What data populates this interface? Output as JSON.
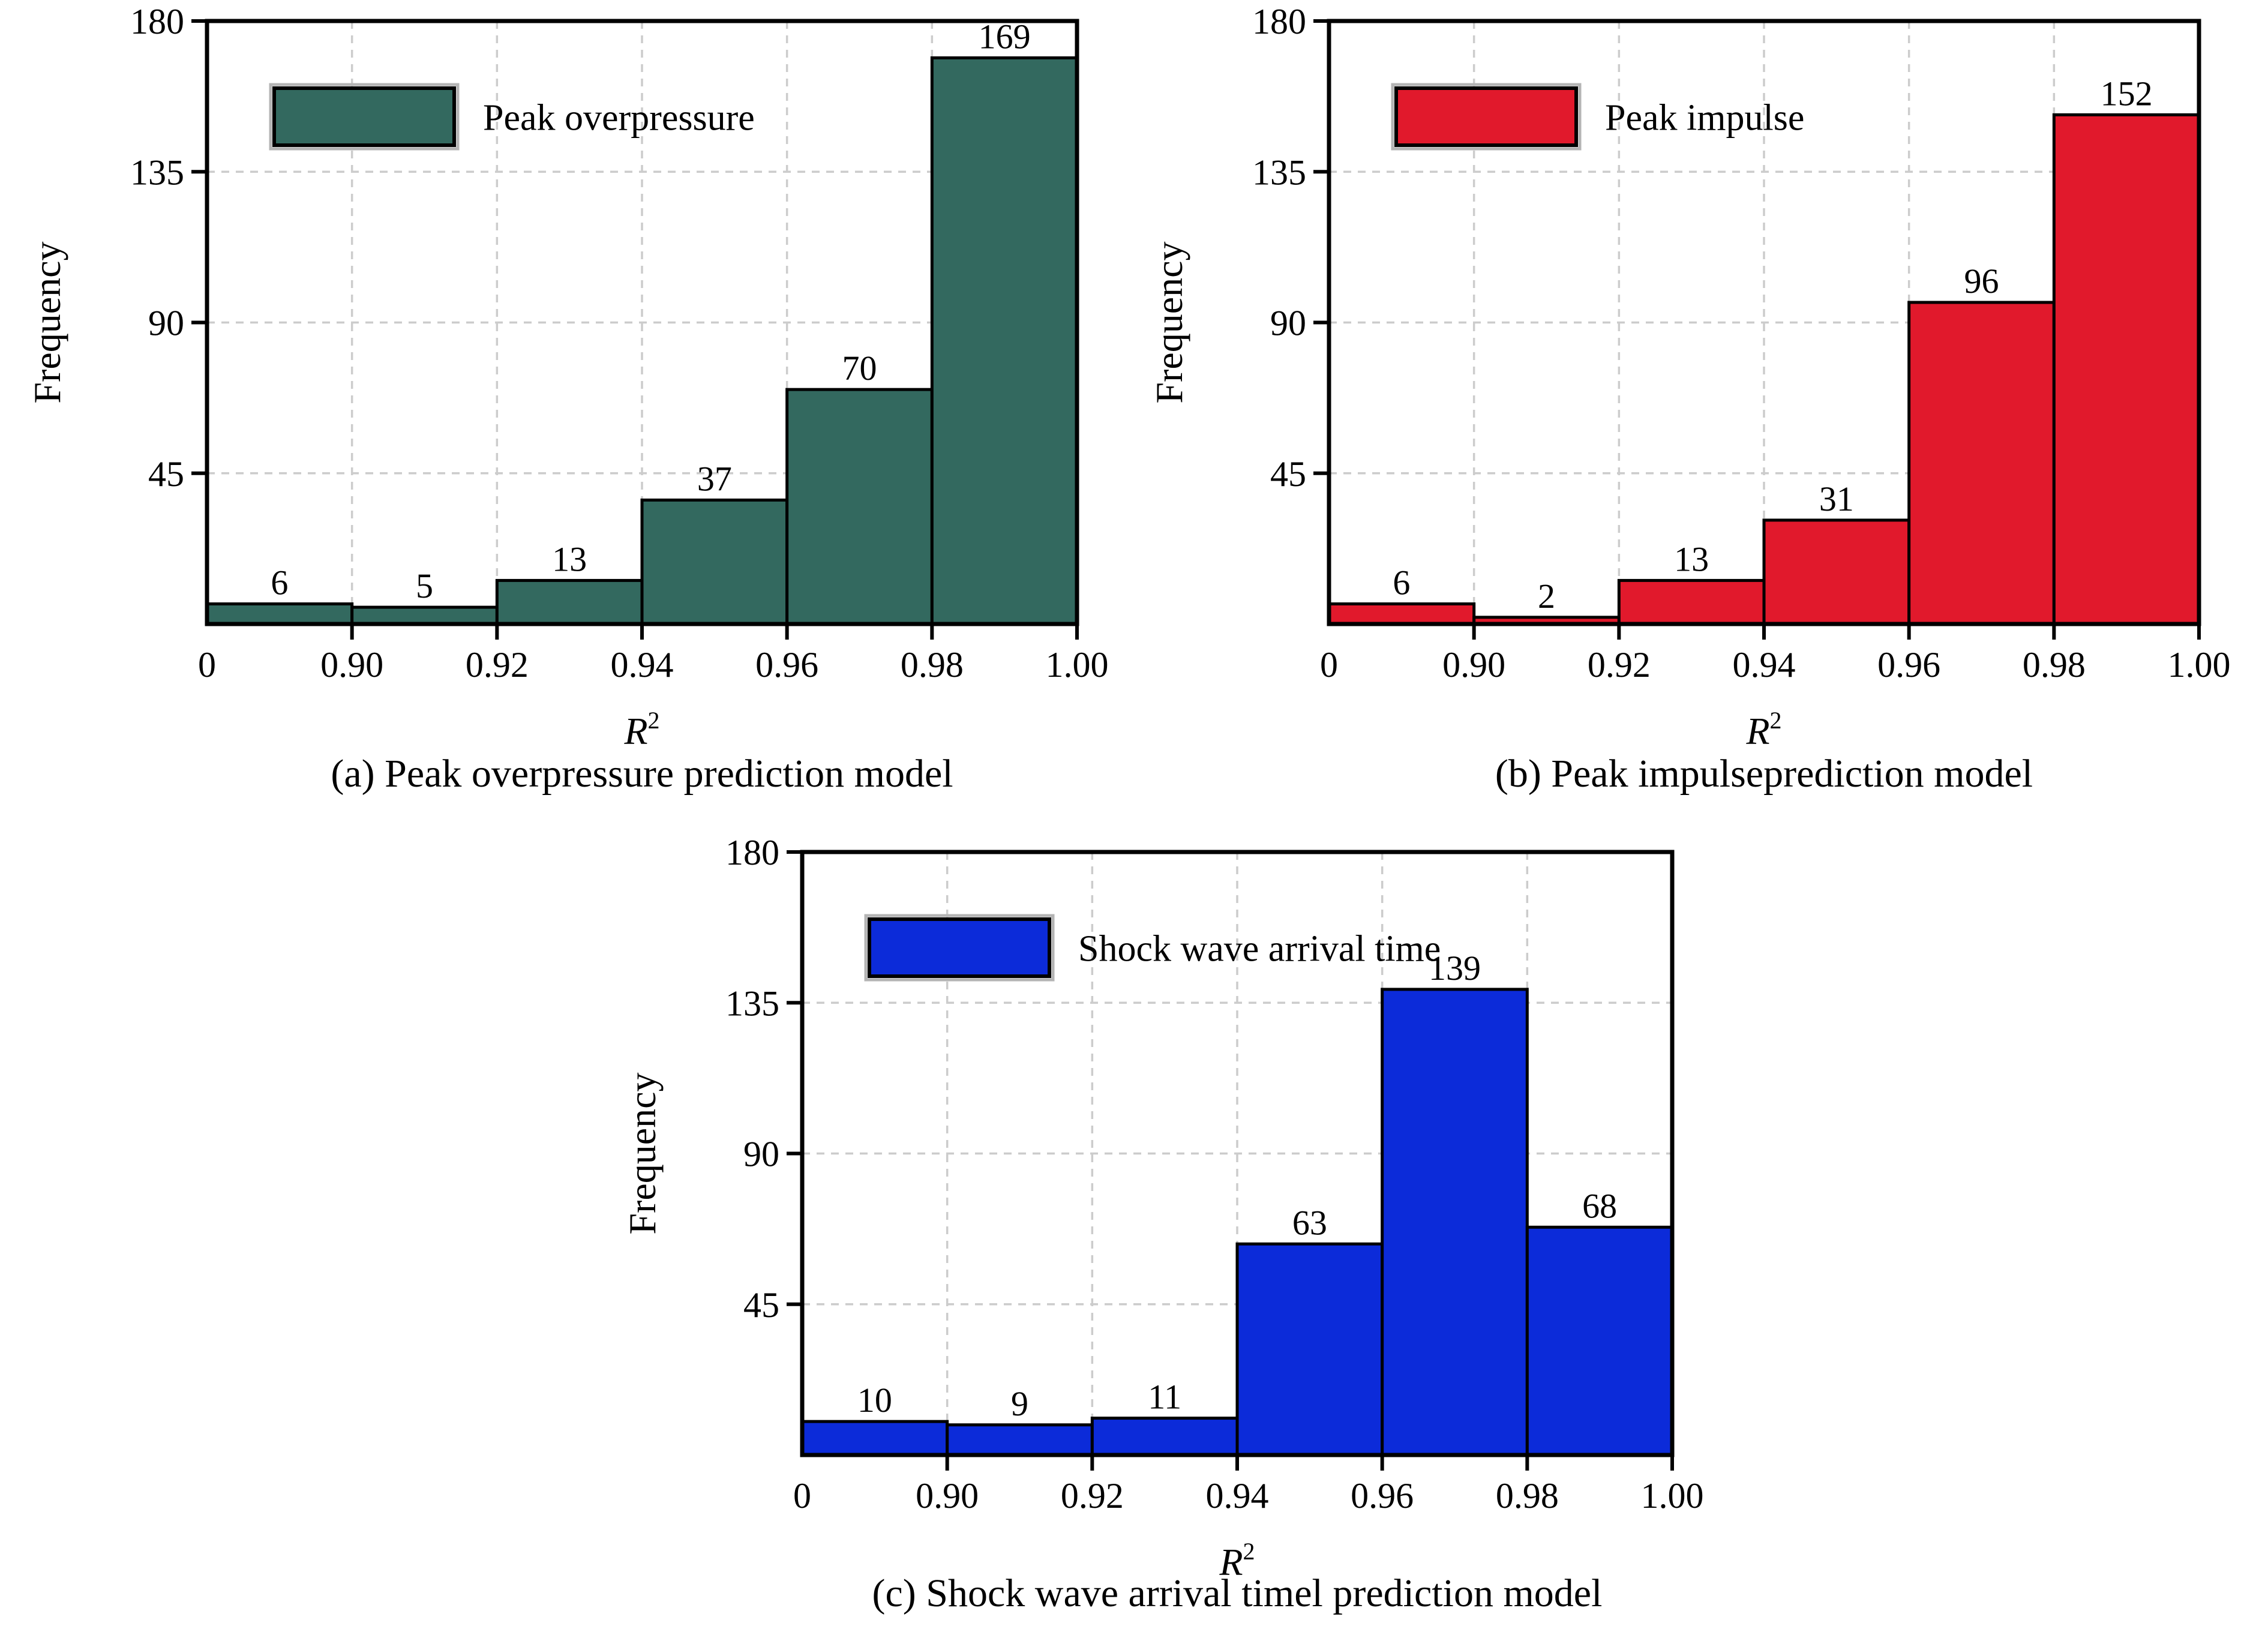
{
  "figure": {
    "background": "#ffffff",
    "axis_color": "#000000",
    "grid_color": "#cccccc",
    "grid_style": "dashed",
    "ylabel": "Frequency",
    "xlabel_base": "R",
    "xlabel_sup": "2",
    "x_tick_labels": [
      "0",
      "0.90",
      "0.92",
      "0.94",
      "0.96",
      "0.98",
      "1.00"
    ],
    "y_tick_labels": [
      "180",
      "135",
      "90",
      "45"
    ],
    "y_tick_values": [
      180,
      135,
      90,
      45
    ],
    "y_grid_values": [
      45,
      90,
      135
    ],
    "ylim": [
      0,
      180
    ]
  },
  "chart_data": [
    {
      "id": "a",
      "type": "bar",
      "title": "(a) Peak overpressure prediction model",
      "legend": "Peak overpressure",
      "color": "#33695F",
      "categories": [
        "<0.90",
        "0.90-0.92",
        "0.92-0.94",
        "0.94-0.96",
        "0.96-0.98",
        "0.98-1.00"
      ],
      "values": [
        6,
        5,
        13,
        37,
        70,
        169
      ],
      "xlabel": "R²",
      "ylabel": "Frequency",
      "ylim": [
        0,
        180
      ],
      "x_tick_labels": [
        "0",
        "0.90",
        "0.92",
        "0.94",
        "0.96",
        "0.98",
        "1.00"
      ]
    },
    {
      "id": "b",
      "type": "bar",
      "title": "(b) Peak impulseprediction model",
      "legend": "Peak impulse",
      "color": "#E1192C",
      "categories": [
        "<0.90",
        "0.90-0.92",
        "0.92-0.94",
        "0.94-0.96",
        "0.96-0.98",
        "0.98-1.00"
      ],
      "values": [
        6,
        2,
        13,
        31,
        96,
        152
      ],
      "xlabel": "R²",
      "ylabel": "Frequency",
      "ylim": [
        0,
        180
      ],
      "x_tick_labels": [
        "0",
        "0.90",
        "0.92",
        "0.94",
        "0.96",
        "0.98",
        "1.00"
      ]
    },
    {
      "id": "c",
      "type": "bar",
      "title": "(c) Shock wave arrival timel prediction model",
      "legend": "Shock wave arrival time",
      "color": "#0C2BD9",
      "categories": [
        "<0.90",
        "0.90-0.92",
        "0.92-0.94",
        "0.94-0.96",
        "0.96-0.98",
        "0.98-1.00"
      ],
      "values": [
        10,
        9,
        11,
        63,
        139,
        68
      ],
      "xlabel": "R²",
      "ylabel": "Frequency",
      "ylim": [
        0,
        180
      ],
      "x_tick_labels": [
        "0",
        "0.90",
        "0.92",
        "0.94",
        "0.96",
        "0.98",
        "1.00"
      ]
    }
  ]
}
